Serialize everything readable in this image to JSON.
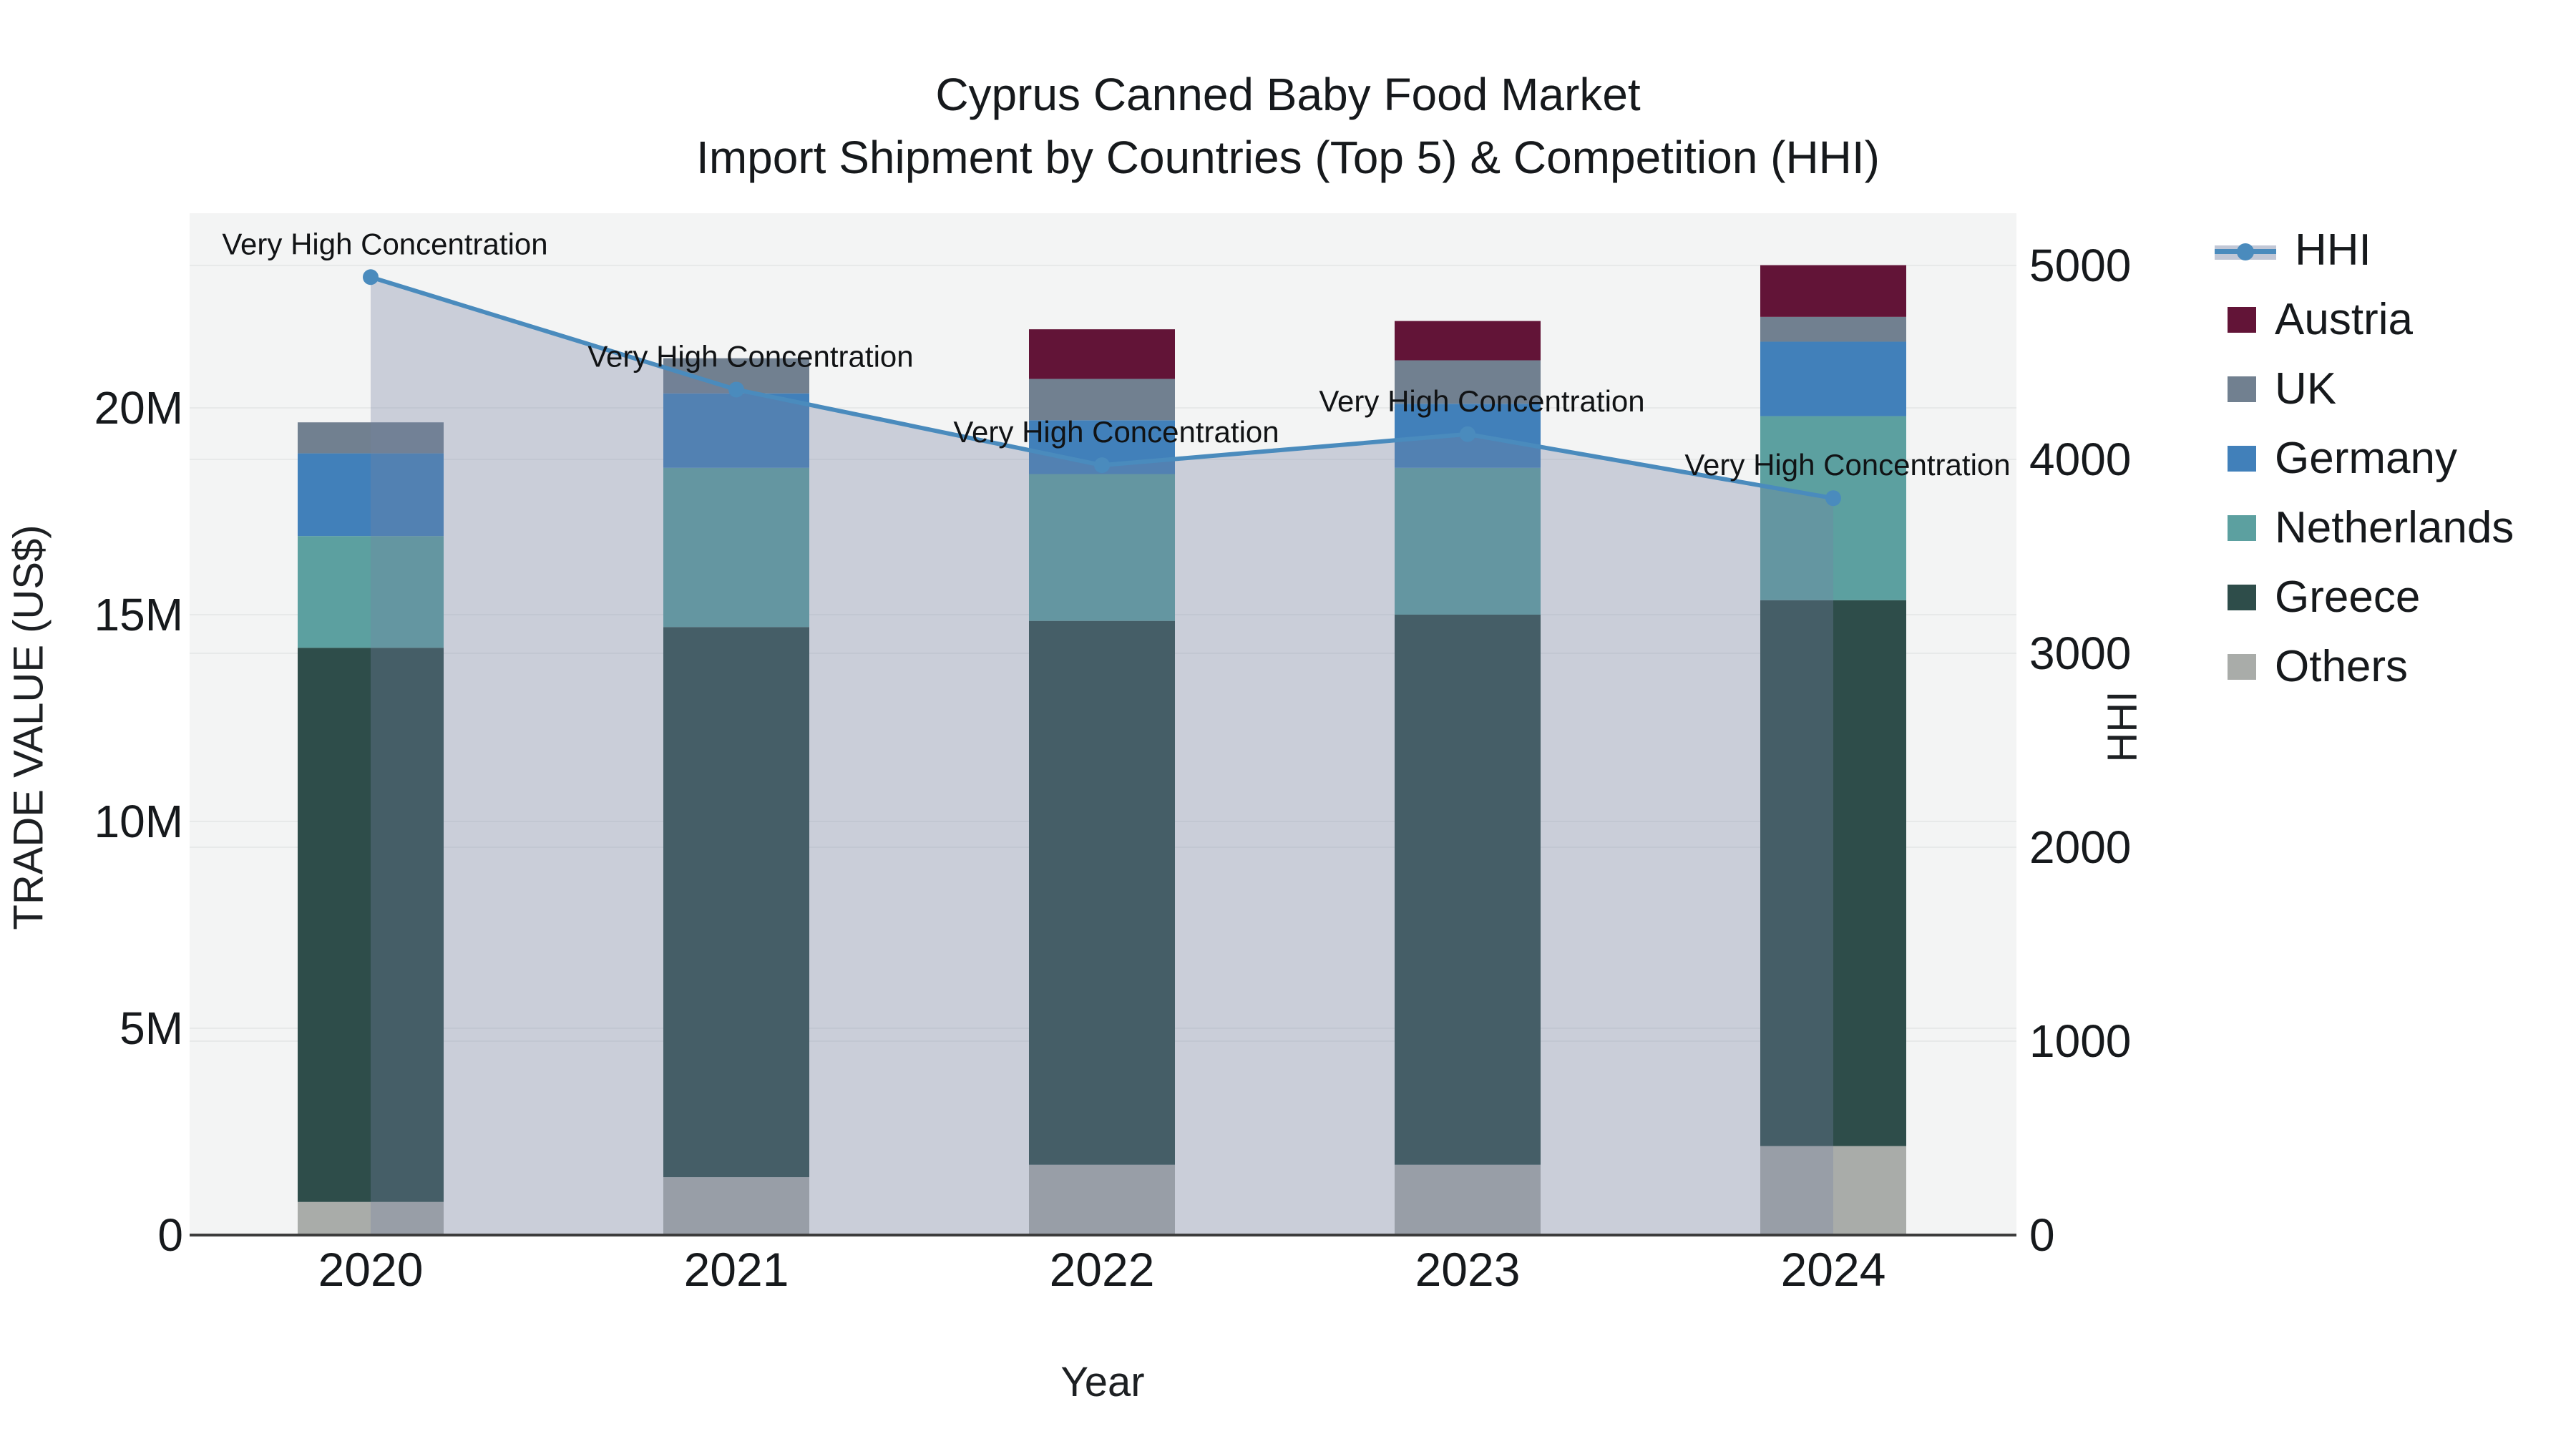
{
  "title": {
    "line1": "Cyprus Canned Baby Food Market",
    "line2": "Import Shipment by Countries (Top 5) & Competition (HHI)"
  },
  "axes": {
    "x": {
      "title": "Year"
    },
    "y_left": {
      "title": "TRADE VALUE (US$)"
    },
    "y_right": {
      "title": "HHI"
    }
  },
  "legend": [
    {
      "label": "HHI",
      "type": "line",
      "color": "#4a8bbd"
    },
    {
      "label": "Austria",
      "type": "swatch",
      "color": "#621437"
    },
    {
      "label": "UK",
      "type": "swatch",
      "color": "#718090"
    },
    {
      "label": "Germany",
      "type": "swatch",
      "color": "#4180ba"
    },
    {
      "label": "Netherlands",
      "type": "swatch",
      "color": "#5ca0a0"
    },
    {
      "label": "Greece",
      "type": "swatch",
      "color": "#2e4d4a"
    },
    {
      "label": "Others",
      "type": "swatch",
      "color": "#a9aca9"
    }
  ],
  "chart_data": {
    "type": "combo-stacked-bar-line",
    "title": "Cyprus Canned Baby Food Market — Import Shipment by Countries (Top 5) & Competition (HHI)",
    "categories": [
      "2020",
      "2021",
      "2022",
      "2023",
      "2024"
    ],
    "bar_unit": "million US$",
    "stack_order_bottom_to_top": [
      "Others",
      "Greece",
      "Netherlands",
      "Germany",
      "UK",
      "Austria"
    ],
    "series": [
      {
        "name": "Others",
        "color": "#a9aca9",
        "values": [
          0.8,
          1.4,
          1.7,
          1.7,
          2.15
        ]
      },
      {
        "name": "Greece",
        "color": "#2e4d4a",
        "values": [
          13.4,
          13.3,
          13.15,
          13.3,
          13.2
        ]
      },
      {
        "name": "Netherlands",
        "color": "#5ca0a0",
        "values": [
          2.7,
          3.85,
          3.55,
          3.55,
          4.45
        ]
      },
      {
        "name": "Germany",
        "color": "#4180ba",
        "values": [
          2.0,
          1.8,
          1.3,
          1.55,
          1.8
        ]
      },
      {
        "name": "UK",
        "color": "#718090",
        "values": [
          0.75,
          0.85,
          1.0,
          1.05,
          0.6
        ]
      },
      {
        "name": "Austria",
        "color": "#621437",
        "values": [
          0.0,
          0.0,
          1.2,
          0.95,
          1.25
        ]
      }
    ],
    "bar_totals": [
      19.65,
      21.2,
      21.9,
      22.1,
      23.45
    ],
    "line": {
      "name": "HHI",
      "color": "#4a8bbd",
      "area_fill": "rgba(118,130,163,0.33)",
      "values": [
        4940,
        4360,
        3970,
        4130,
        3800
      ]
    },
    "annotations": [
      {
        "category": "2020",
        "text": "Very High Concentration"
      },
      {
        "category": "2021",
        "text": "Very High Concentration"
      },
      {
        "category": "2022",
        "text": "Very High Concentration"
      },
      {
        "category": "2023",
        "text": "Very High Concentration"
      },
      {
        "category": "2024",
        "text": "Very High Concentration"
      }
    ],
    "y_left": {
      "label": "TRADE VALUE (US$)",
      "tick_labels": [
        "0",
        "5M",
        "10M",
        "15M",
        "20M"
      ],
      "tick_values": [
        0,
        5,
        10,
        15,
        20
      ],
      "range": [
        0,
        24.7
      ]
    },
    "y_right": {
      "label": "HHI",
      "tick_labels": [
        "0",
        "1000",
        "2000",
        "3000",
        "4000",
        "5000"
      ],
      "tick_values": [
        0,
        1000,
        2000,
        3000,
        4000,
        5000
      ],
      "range": [
        0,
        5000
      ]
    },
    "xlabel": "Year",
    "grid": true,
    "legend_position": "right",
    "plot_background": "#f3f4f4"
  }
}
